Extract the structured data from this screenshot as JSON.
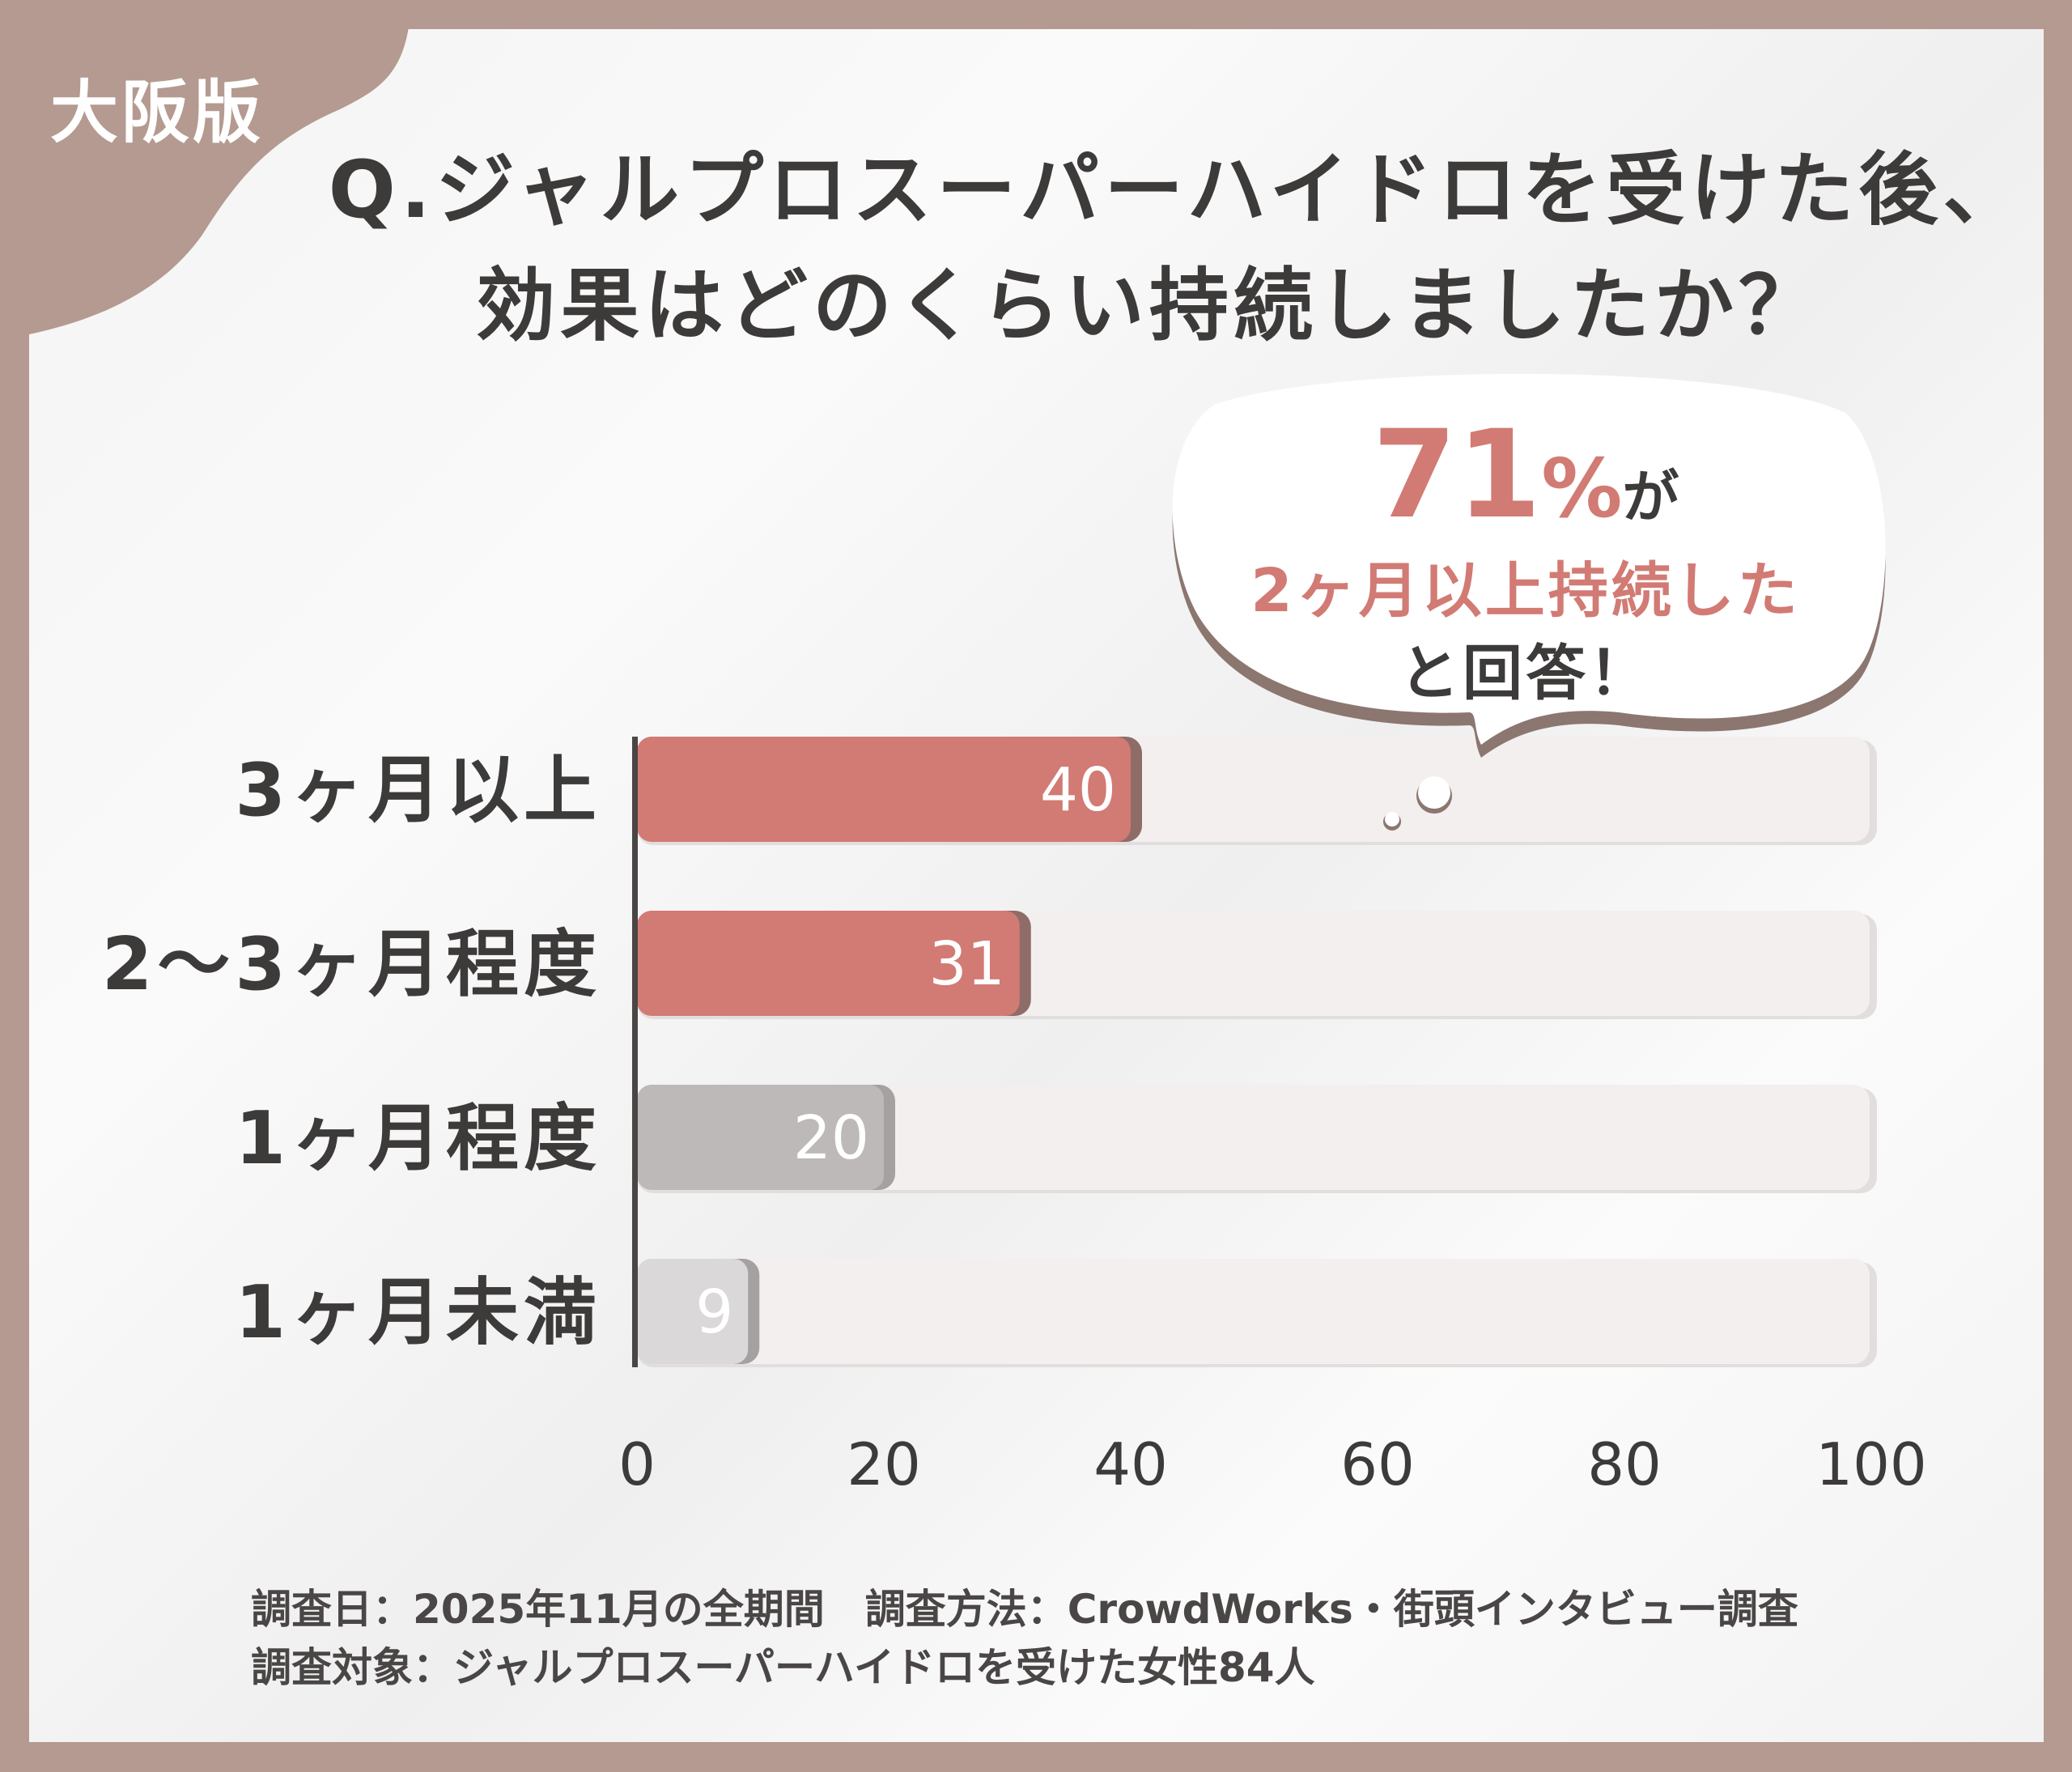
{
  "badge": "大阪版",
  "title": {
    "line1": "Q.ジャルプロスーパーハイドロを受けた後、",
    "line2": "効果はどのくらい持続しましたか？"
  },
  "callout": {
    "percent": "71",
    "percent_sign": "%",
    "particle": "が",
    "line2": "2ヶ月以上持続した",
    "line3": "と回答！"
  },
  "footer": {
    "line1": "調査日：2025年11月の全期間　調査方法：CrowdWorks・街頭インタビュー調査",
    "line2": "調査対象：ジャルプロスーパーハイドロを受けた女性84人"
  },
  "colors": {
    "highlight": "#d27a74",
    "neutral": "#bdb9b8",
    "light": "#dad8d8",
    "track": "#f3efee",
    "frame": "#b49a90"
  },
  "chart_data": {
    "type": "bar",
    "orientation": "horizontal",
    "categories": [
      "3ヶ月以上",
      "2〜3ヶ月程度",
      "1ヶ月程度",
      "1ヶ月未満"
    ],
    "values": [
      40,
      31,
      20,
      9
    ],
    "bar_colors": [
      "#d27a74",
      "#d27a74",
      "#bdb9b8",
      "#dad8d8"
    ],
    "xlim": [
      0,
      100
    ],
    "xticks": [
      "0",
      "20",
      "40",
      "60",
      "80",
      "100"
    ],
    "xtick_values": [
      0,
      20,
      40,
      60,
      80,
      100
    ],
    "title": "Q.ジャルプロスーパーハイドロを受けた後、効果はどのくらい持続しましたか？",
    "xlabel": "",
    "ylabel": ""
  }
}
